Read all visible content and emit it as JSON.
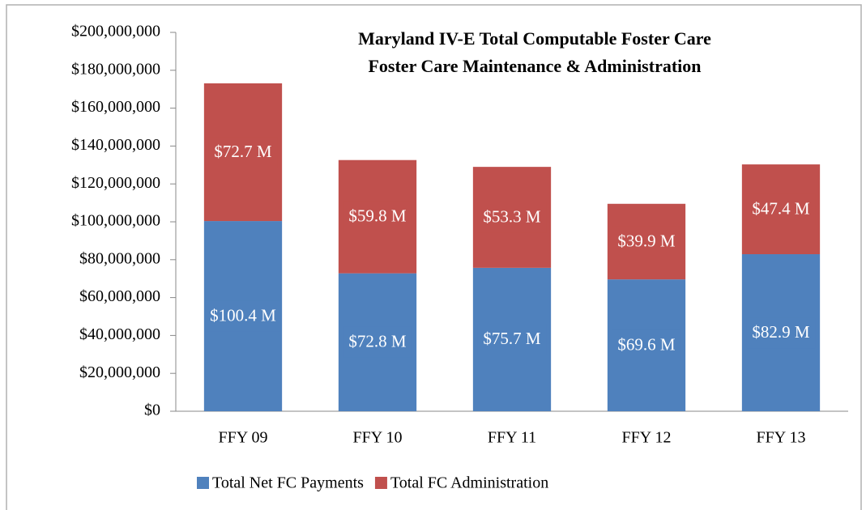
{
  "chart_data": {
    "type": "stacked_bar",
    "title": "Maryland IV-E Total Computable Foster Care",
    "subtitle": "Foster Care Maintenance & Administration",
    "categories": [
      "FFY 09",
      "FFY 10",
      "FFY 11",
      "FFY 12",
      "FFY 13"
    ],
    "series": [
      {
        "name": "Total Net FC Payments",
        "color": "#4f81bd",
        "values": [
          100400000,
          72800000,
          75700000,
          69600000,
          82900000
        ],
        "value_labels": [
          "$100.4 M",
          "$72.8 M",
          "$75.7 M",
          "$69.6 M",
          "$82.9 M"
        ]
      },
      {
        "name": "Total FC Administration",
        "color": "#c0504d",
        "values": [
          72700000,
          59800000,
          53300000,
          39900000,
          47400000
        ],
        "value_labels": [
          "$72.7 M",
          "$59.8 M",
          "$53.3 M",
          "$39.9 M",
          "$47.4 M"
        ]
      }
    ],
    "ylim": [
      0,
      200000000
    ],
    "yticks": [
      {
        "value": 0,
        "label": "$0"
      },
      {
        "value": 20000000,
        "label": "$20,000,000"
      },
      {
        "value": 40000000,
        "label": "$40,000,000"
      },
      {
        "value": 60000000,
        "label": "$60,000,000"
      },
      {
        "value": 80000000,
        "label": "$80,000,000"
      },
      {
        "value": 100000000,
        "label": "$100,000,000"
      },
      {
        "value": 120000000,
        "label": "$120,000,000"
      },
      {
        "value": 140000000,
        "label": "$140,000,000"
      },
      {
        "value": 160000000,
        "label": "$160,000,000"
      },
      {
        "value": 180000000,
        "label": "$180,000,000"
      },
      {
        "value": 200000000,
        "label": "$200,000,000"
      }
    ],
    "legend": "bottom"
  }
}
